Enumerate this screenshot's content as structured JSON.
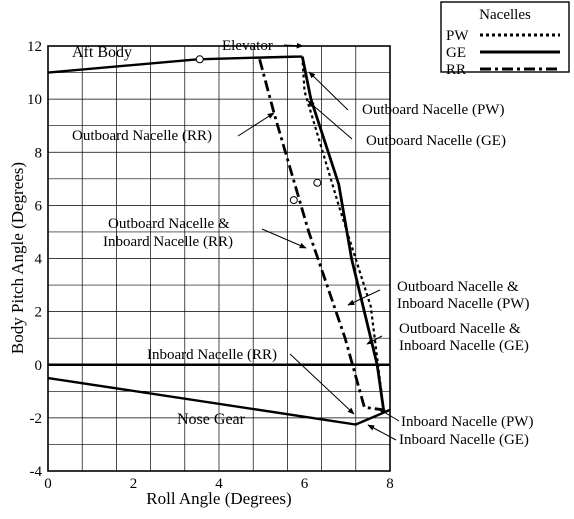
{
  "chart_data": {
    "type": "line",
    "title": "",
    "xlabel": "Roll Angle (Degrees)",
    "ylabel": "Body Pitch Angle (Degrees)",
    "xlim": [
      0,
      8
    ],
    "ylim": [
      -4,
      12
    ],
    "x_ticks": [
      "0",
      "2",
      "4",
      "6",
      "8"
    ],
    "y_ticks": [
      "-4",
      "-2",
      "0",
      "2",
      "4",
      "6",
      "8",
      "10",
      "12"
    ],
    "x_grid_step": 0.8,
    "y_grid_step": 1,
    "grid": true,
    "legend": {
      "title": "Nacelles",
      "position": "top-right",
      "entries": [
        {
          "label": "PW",
          "style": "dotted"
        },
        {
          "label": "GE",
          "style": "solid"
        },
        {
          "label": "RR",
          "style": "dash-dot"
        }
      ]
    },
    "boundary": [
      {
        "name": "Aft Body",
        "x": [
          0,
          3.5,
          5.8
        ],
        "y": [
          11,
          11.5,
          11.6
        ]
      },
      {
        "name": "Elevator",
        "x": [
          5.8,
          5.95
        ],
        "y": [
          11.6,
          11.6
        ]
      },
      {
        "name": "Nose Gear",
        "x": [
          0,
          7.2,
          8
        ],
        "y": [
          -0.5,
          -2.25,
          -1.7
        ]
      }
    ],
    "series": [
      {
        "style": "dotted",
        "x": [
          5.95,
          6.0,
          6.8,
          7.55,
          7.85
        ],
        "y": [
          11.6,
          10.3,
          6.0,
          2.2,
          -1.7
        ]
      },
      {
        "style": "solid",
        "x": [
          5.95,
          6.15,
          6.8,
          7.1,
          7.7,
          7.85
        ],
        "y": [
          11.6,
          10.0,
          6.8,
          4.0,
          0.0,
          -1.7
        ]
      },
      {
        "style": "dash-dot",
        "x": [
          4.95,
          5.3,
          6.1,
          6.95,
          7.4,
          7.85
        ],
        "y": [
          11.5,
          9.4,
          5.0,
          1.0,
          -1.6,
          -1.7
        ]
      }
    ],
    "markers": [
      {
        "x": 3.55,
        "y": 11.5
      },
      {
        "x": 5.75,
        "y": 6.2
      },
      {
        "x": 6.3,
        "y": 6.85
      }
    ],
    "annotations": [
      {
        "text": "Aft Body"
      },
      {
        "text": "Elevator"
      },
      {
        "text": "Nose Gear"
      },
      {
        "text": "Outboard Nacelle (PW)"
      },
      {
        "text": "Outboard Nacelle (GE)"
      },
      {
        "text": "Outboard Nacelle (RR)"
      },
      {
        "text": "Outboard Nacelle &",
        "text2": "Inboard Nacelle (RR)"
      },
      {
        "text": "Outboard Nacelle &",
        "text2": "Inboard Nacelle (PW)"
      },
      {
        "text": "Outboard Nacelle &",
        "text2": "Inboard Nacelle (GE)"
      },
      {
        "text": "Inboard Nacelle (RR)"
      },
      {
        "text": "Inboard Nacelle (PW)"
      },
      {
        "text": "Inboard Nacelle (GE)"
      }
    ]
  }
}
